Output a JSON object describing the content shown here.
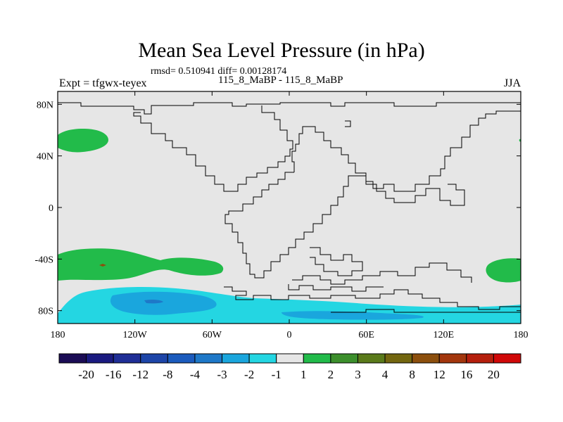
{
  "title": "Mean Sea Level Pressure (in hPa)",
  "stats": "rmsd= 0.510941 diff= 0.00128174",
  "experiment_label": "Expt = tfgwx-teyex",
  "comparison_label": "115_8_MaBP - 115_8_MaBP",
  "season": "JJA",
  "axes": {
    "x_ticks": [
      {
        "lon": -180,
        "label": "180"
      },
      {
        "lon": -120,
        "label": "120W"
      },
      {
        "lon": -60,
        "label": "60W"
      },
      {
        "lon": 0,
        "label": "0"
      },
      {
        "lon": 60,
        "label": "60E"
      },
      {
        "lon": 120,
        "label": "120E"
      },
      {
        "lon": 180,
        "label": "180"
      }
    ],
    "y_ticks": [
      {
        "lat": 80,
        "label": "80N"
      },
      {
        "lat": 40,
        "label": "40N"
      },
      {
        "lat": 0,
        "label": "0"
      },
      {
        "lat": -40,
        "label": "-40S"
      },
      {
        "lat": -80,
        "label": "80S"
      }
    ],
    "lon_range": [
      -180,
      180
    ],
    "lat_range": [
      -90,
      90
    ]
  },
  "colorbar": {
    "colors": [
      "#1b0c55",
      "#1a1a80",
      "#1f2e96",
      "#1d45a8",
      "#1b5bbd",
      "#1e78c8",
      "#1aa6dd",
      "#24d6e2",
      "#e6e6e6",
      "#22bb4a",
      "#3c8f2c",
      "#5a7a1a",
      "#73660f",
      "#8c4f0d",
      "#a3360d",
      "#b51f0d",
      "#d00808"
    ],
    "labels": [
      "-20",
      "-16",
      "-12",
      "-8",
      "-4",
      "-3",
      "-2",
      "-1",
      "1",
      "2",
      "3",
      "4",
      "8",
      "12",
      "16",
      "20"
    ]
  },
  "colors": {
    "background_land_ocean": "#e6e6e6",
    "positive_anomaly": "#22bb4a",
    "negative_anomaly_light": "#24d6e2",
    "negative_anomaly_mid": "#1aa6dd",
    "negative_anomaly_dark": "#1e78c8",
    "coastline": "#000000"
  }
}
